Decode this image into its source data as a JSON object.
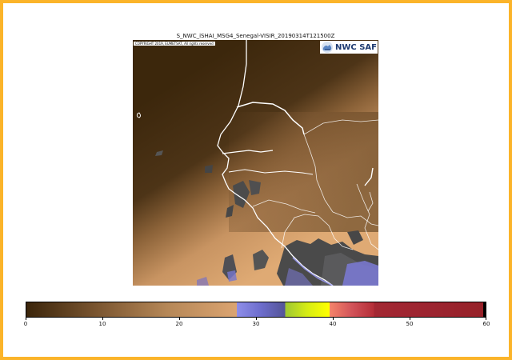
{
  "figure": {
    "title": "S_NWC_iSHAI_MSG4_Senegal-VISIR_20190314T121500Z",
    "copyright": "COPYRIGHT 2019, EUMETSAT, All rights reserved",
    "logo_text": "NWC SAF",
    "logo_mark_icon": "nwcsaf-logo-icon"
  },
  "colorbar": {
    "min": 0,
    "max": 60,
    "ticks": [
      0,
      10,
      20,
      30,
      40,
      50,
      60
    ],
    "segments": [
      {
        "from": 0,
        "to": 27.5,
        "colors": [
          "#3b250b",
          "#7a5530",
          "#b58757",
          "#dba471"
        ]
      },
      {
        "from": 27.5,
        "to": 33.8,
        "colors": [
          "#8e8ee9",
          "#6d6dcc",
          "#545497"
        ]
      },
      {
        "from": 33.8,
        "to": 39.6,
        "colors": [
          "#9ec733",
          "#d6ec14",
          "#ffff00"
        ]
      },
      {
        "from": 39.6,
        "to": 45.4,
        "colors": [
          "#f5856a",
          "#d2545a",
          "#b42e38"
        ]
      },
      {
        "from": 45.4,
        "to": 60,
        "colors": [
          "#a32833",
          "#9c2430",
          "#962128"
        ]
      }
    ]
  }
}
